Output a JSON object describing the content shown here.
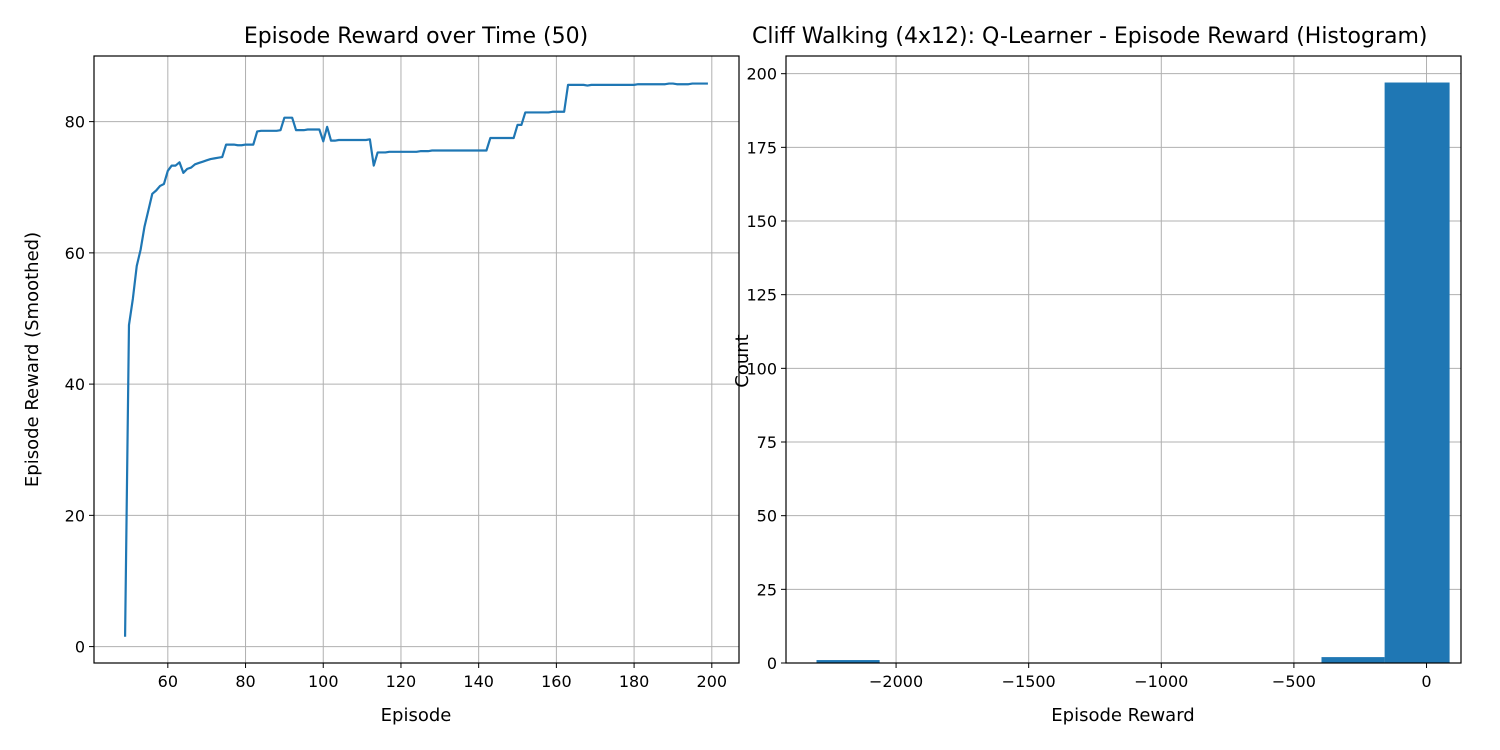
{
  "chart_data": [
    {
      "type": "line",
      "title": "Episode Reward over Time (50)",
      "xlabel": "Episode",
      "ylabel": "Episode Reward (Smoothed)",
      "xlim": [
        41,
        207
      ],
      "ylim": [
        -2.5,
        90
      ],
      "xticks": [
        60,
        80,
        100,
        120,
        140,
        160,
        180,
        200
      ],
      "yticks": [
        0,
        20,
        40,
        60,
        80
      ],
      "grid": true,
      "color": "#1f77b4",
      "series": [
        {
          "x": [
            49,
            50,
            51,
            52,
            53,
            54,
            55,
            56,
            57,
            58,
            59,
            60,
            61,
            62,
            63,
            64,
            65,
            66,
            67,
            68,
            69,
            70,
            71,
            72,
            73,
            74,
            75,
            76,
            77,
            78,
            79,
            80,
            81,
            82,
            83,
            84,
            85,
            86,
            87,
            88,
            89,
            90,
            91,
            92,
            93,
            94,
            95,
            96,
            97,
            98,
            99,
            100,
            101,
            102,
            103,
            104,
            105,
            106,
            107,
            108,
            109,
            110,
            111,
            112,
            113,
            114,
            115,
            116,
            117,
            118,
            119,
            120,
            121,
            122,
            123,
            124,
            125,
            126,
            127,
            128,
            129,
            130,
            131,
            132,
            133,
            134,
            135,
            136,
            137,
            138,
            139,
            140,
            141,
            142,
            143,
            144,
            145,
            146,
            147,
            148,
            149,
            150,
            151,
            152,
            153,
            154,
            155,
            156,
            157,
            158,
            159,
            160,
            161,
            162,
            163,
            164,
            165,
            166,
            167,
            168,
            169,
            170,
            171,
            172,
            173,
            174,
            175,
            176,
            177,
            178,
            179,
            180,
            181,
            182,
            183,
            184,
            185,
            186,
            187,
            188,
            189,
            190,
            191,
            192,
            193,
            194,
            195,
            196,
            197,
            198,
            199
          ],
          "y": [
            1.5,
            49.0,
            53.0,
            58.0,
            60.5,
            64.0,
            66.5,
            69.0,
            69.5,
            70.2,
            70.5,
            72.5,
            73.3,
            73.3,
            73.8,
            72.2,
            72.8,
            73.0,
            73.5,
            73.7,
            73.9,
            74.1,
            74.3,
            74.4,
            74.5,
            74.6,
            76.5,
            76.5,
            76.5,
            76.4,
            76.4,
            76.5,
            76.5,
            76.5,
            78.5,
            78.6,
            78.6,
            78.6,
            78.6,
            78.6,
            78.7,
            80.6,
            80.6,
            80.6,
            78.7,
            78.7,
            78.7,
            78.8,
            78.8,
            78.8,
            78.8,
            77.0,
            79.2,
            77.1,
            77.1,
            77.2,
            77.2,
            77.2,
            77.2,
            77.2,
            77.2,
            77.2,
            77.2,
            77.3,
            73.3,
            75.3,
            75.3,
            75.3,
            75.4,
            75.4,
            75.4,
            75.4,
            75.4,
            75.4,
            75.4,
            75.4,
            75.5,
            75.5,
            75.5,
            75.6,
            75.6,
            75.6,
            75.6,
            75.6,
            75.6,
            75.6,
            75.6,
            75.6,
            75.6,
            75.6,
            75.6,
            75.6,
            75.6,
            75.6,
            77.5,
            77.5,
            77.5,
            77.5,
            77.5,
            77.5,
            77.5,
            79.5,
            79.5,
            81.4,
            81.4,
            81.4,
            81.4,
            81.4,
            81.4,
            81.4,
            81.5,
            81.5,
            81.5,
            81.5,
            85.6,
            85.6,
            85.6,
            85.6,
            85.6,
            85.5,
            85.6,
            85.6,
            85.6,
            85.6,
            85.6,
            85.6,
            85.6,
            85.6,
            85.6,
            85.6,
            85.6,
            85.6,
            85.7,
            85.7,
            85.7,
            85.7,
            85.7,
            85.7,
            85.7,
            85.7,
            85.8,
            85.8,
            85.7,
            85.7,
            85.7,
            85.7,
            85.8,
            85.8,
            85.8,
            85.8,
            85.8
          ]
        }
      ]
    },
    {
      "type": "bar",
      "title": "Cliff Walking (4x12): Q-Learner - Episode Reward (Histogram)",
      "xlabel": "Episode Reward",
      "ylabel": "Count",
      "xlim": [
        -2415,
        130
      ],
      "ylim": [
        0,
        206
      ],
      "xticks": [
        -2000,
        -1500,
        -1000,
        -500,
        0
      ],
      "xtick_labels": [
        "−2000",
        "−1500",
        "−1000",
        "−500",
        "0"
      ],
      "yticks": [
        0,
        25,
        50,
        75,
        100,
        125,
        150,
        175,
        200
      ],
      "grid": true,
      "color": "#1f77b4",
      "bins": [
        {
          "x0": -2300,
          "x1": -2062,
          "count": 1
        },
        {
          "x0": -2062,
          "x1": -1824,
          "count": 0
        },
        {
          "x0": -1824,
          "x1": -1586,
          "count": 0
        },
        {
          "x0": -1586,
          "x1": -1348,
          "count": 0
        },
        {
          "x0": -1348,
          "x1": -1110,
          "count": 0
        },
        {
          "x0": -1110,
          "x1": -872,
          "count": 0
        },
        {
          "x0": -872,
          "x1": -634,
          "count": 0
        },
        {
          "x0": -634,
          "x1": -396,
          "count": 0
        },
        {
          "x0": -396,
          "x1": -158,
          "count": 2
        },
        {
          "x0": -158,
          "x1": 87,
          "count": 197
        }
      ]
    }
  ]
}
